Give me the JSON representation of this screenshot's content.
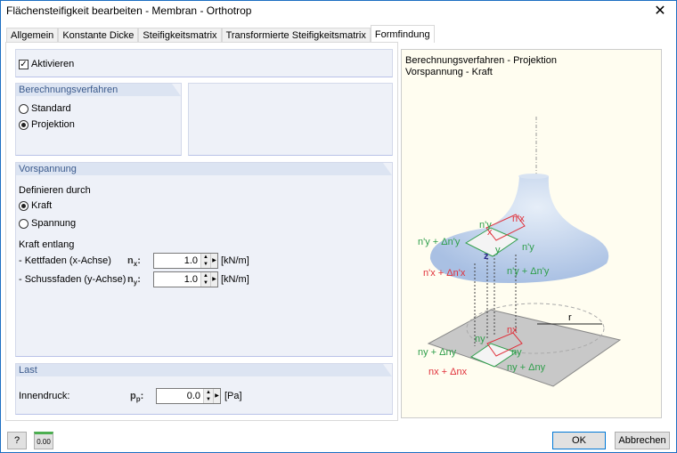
{
  "window": {
    "title": "Flächensteifigkeit bearbeiten - Membran - Orthotrop",
    "close": "✕"
  },
  "tabs": [
    {
      "label": "Allgemein"
    },
    {
      "label": "Konstante Dicke"
    },
    {
      "label": "Steifigkeitsmatrix"
    },
    {
      "label": "Transformierte Steifigkeitsmatrix"
    },
    {
      "label": "Formfindung",
      "active": true
    }
  ],
  "activate": {
    "label": "Aktivieren",
    "checked": true
  },
  "method": {
    "header": "Berechnungsverfahren",
    "options": [
      "Standard",
      "Projektion"
    ],
    "selected": "Projektion"
  },
  "prestress": {
    "header": "Vorspannung",
    "define_label": "Definieren durch",
    "options": [
      "Kraft",
      "Spannung"
    ],
    "selected": "Kraft",
    "along_label": "Kraft entlang",
    "warp": {
      "label": "- Kettfaden (x-Achse)",
      "symbol": "nx",
      "sub": "x",
      "value": "1.0",
      "unit": "[kN/m]"
    },
    "weft": {
      "label": "- Schussfaden (y-Achse)",
      "symbol": "ny",
      "sub": "y",
      "value": "1.0",
      "unit": "[kN/m]"
    }
  },
  "load": {
    "header": "Last",
    "label": "Innendruck:",
    "symbol": "p",
    "sub": "p",
    "value": "0.0",
    "unit": "[Pa]"
  },
  "figure": {
    "line1": "Berechnungsverfahren - Projektion",
    "line2": "Vorspannung - Kraft",
    "labels": {
      "npy": "n'y",
      "npx": "n'x",
      "npy_d": "n'y + Δn'y",
      "npy_r": "n'y",
      "npx_d": "n'x + Δn'x",
      "npy_d2": "n'y + Δn'y",
      "ny": "ny",
      "nx": "nx",
      "ny_d": "ny + Δny",
      "ny_r": "ny",
      "ny_d2": "ny + Δny",
      "nx_d": "nx + Δnx",
      "r": "r",
      "x": "x",
      "y": "y",
      "z": "z"
    }
  },
  "footer": {
    "ok": "OK",
    "cancel": "Abbrechen",
    "help_icon": "help-icon",
    "units_icon": "units-icon",
    "units_text": "0.00"
  },
  "colors": {
    "red": "#e0303a",
    "green": "#2e9e4a",
    "surface": "#b8cbe8"
  }
}
